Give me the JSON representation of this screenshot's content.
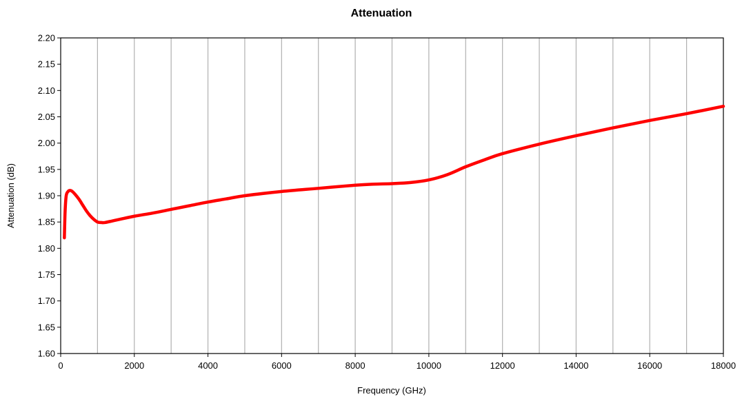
{
  "chart_data": {
    "type": "line",
    "title": "Attenuation",
    "xlabel": "Frequency (GHz)",
    "ylabel": "Attenuation (dB)",
    "xlim": [
      0,
      18000
    ],
    "ylim": [
      1.6,
      2.2
    ],
    "xticks": [
      0,
      2000,
      4000,
      6000,
      8000,
      10000,
      12000,
      14000,
      16000,
      18000
    ],
    "yticks": [
      1.6,
      1.65,
      1.7,
      1.75,
      1.8,
      1.85,
      1.9,
      1.95,
      2.0,
      2.05,
      2.1,
      2.15,
      2.2
    ],
    "xtick_labels": [
      "0",
      "2000",
      "4000",
      "6000",
      "8000",
      "10000",
      "12000",
      "14000",
      "16000",
      "18000"
    ],
    "ytick_labels": [
      "1.60",
      "1.65",
      "1.70",
      "1.75",
      "1.80",
      "1.85",
      "1.90",
      "1.95",
      "2.00",
      "2.05",
      "2.10",
      "2.15",
      "2.20"
    ],
    "grid": "vertical",
    "series": [
      {
        "color": "#ff0000",
        "x": [
          100,
          120,
          150,
          200,
          250,
          300,
          400,
          500,
          600,
          700,
          800,
          900,
          1000,
          1100,
          1200,
          1400,
          1600,
          2000,
          2500,
          3000,
          3500,
          4000,
          4500,
          5000,
          6000,
          7000,
          8000,
          8500,
          9000,
          9500,
          10000,
          10500,
          11000,
          11500,
          12000,
          13000,
          14000,
          15000,
          16000,
          17000,
          18000
        ],
        "y": [
          1.82,
          1.87,
          1.9,
          1.908,
          1.91,
          1.909,
          1.902,
          1.893,
          1.882,
          1.871,
          1.862,
          1.855,
          1.85,
          1.849,
          1.849,
          1.852,
          1.855,
          1.861,
          1.867,
          1.874,
          1.881,
          1.888,
          1.894,
          1.9,
          1.908,
          1.914,
          1.92,
          1.922,
          1.923,
          1.925,
          1.93,
          1.94,
          1.955,
          1.968,
          1.98,
          1.998,
          2.014,
          2.029,
          2.043,
          2.056,
          2.07
        ]
      }
    ]
  }
}
